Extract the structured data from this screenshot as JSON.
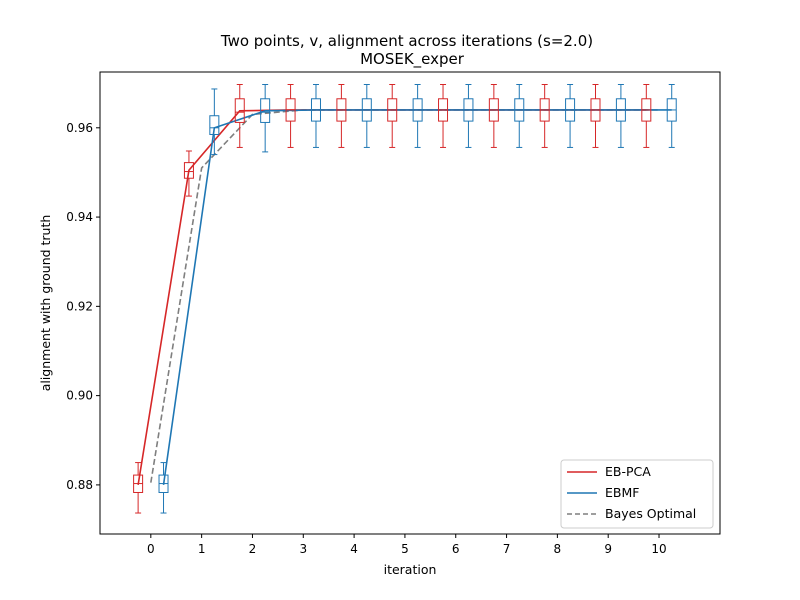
{
  "chart_data": {
    "type": "line",
    "title": "Two points, v, alignment across iterations (s=2.0)",
    "subtitle": "MOSEK_exper",
    "xlabel": "iteration",
    "ylabel": "alignment with ground truth",
    "xlim": [
      -1.0,
      11.2
    ],
    "ylim": [
      0.869,
      0.9725
    ],
    "xticks": [
      0,
      1,
      2,
      3,
      4,
      5,
      6,
      7,
      8,
      9,
      10
    ],
    "yticks": [
      0.88,
      0.9,
      0.92,
      0.94,
      0.96
    ],
    "ytick_labels": [
      "0.88",
      "0.90",
      "0.92",
      "0.94",
      "0.96"
    ],
    "grid": false,
    "legend_position": "lower-right",
    "series": [
      {
        "name": "EB-PCA",
        "color": "#d62728",
        "linestyle": "solid",
        "x": [
          -0.25,
          0.75,
          1.75,
          2.75,
          3.75,
          4.75,
          5.75,
          6.75,
          7.75,
          8.75,
          9.75
        ],
        "y": [
          0.88,
          0.9505,
          0.9638,
          0.964,
          0.964,
          0.964,
          0.964,
          0.964,
          0.964,
          0.964,
          0.964
        ],
        "box": {
          "q1": [
            0.8783,
            0.9487,
            0.9612,
            0.9615,
            0.9615,
            0.9615,
            0.9615,
            0.9615,
            0.9615,
            0.9615,
            0.9615
          ],
          "median": [
            0.8803,
            0.9502,
            0.9635,
            0.964,
            0.964,
            0.964,
            0.964,
            0.964,
            0.964,
            0.964,
            0.964
          ],
          "q3": [
            0.8822,
            0.9522,
            0.9665,
            0.9665,
            0.9665,
            0.9665,
            0.9665,
            0.9665,
            0.9665,
            0.9665,
            0.9665
          ],
          "whisker_low": [
            0.8737,
            0.9447,
            0.9556,
            0.9556,
            0.9556,
            0.9556,
            0.9556,
            0.9556,
            0.9556,
            0.9556,
            0.9556
          ],
          "whisker_high": [
            0.885,
            0.9548,
            0.9697,
            0.9697,
            0.9697,
            0.9697,
            0.9697,
            0.9697,
            0.9697,
            0.9697,
            0.9697
          ]
        }
      },
      {
        "name": "EBMF",
        "color": "#1f77b4",
        "linestyle": "solid",
        "x": [
          0.25,
          1.25,
          2.25,
          3.25,
          4.25,
          5.25,
          6.25,
          7.25,
          8.25,
          9.25,
          10.25
        ],
        "y": [
          0.88,
          0.96,
          0.9638,
          0.964,
          0.964,
          0.964,
          0.964,
          0.964,
          0.964,
          0.964,
          0.964
        ],
        "box": {
          "q1": [
            0.8783,
            0.9585,
            0.9612,
            0.9615,
            0.9615,
            0.9615,
            0.9615,
            0.9615,
            0.9615,
            0.9615,
            0.9615
          ],
          "median": [
            0.8803,
            0.96,
            0.9635,
            0.964,
            0.964,
            0.964,
            0.964,
            0.964,
            0.964,
            0.964,
            0.964
          ],
          "q3": [
            0.8822,
            0.9627,
            0.9665,
            0.9665,
            0.9665,
            0.9665,
            0.9665,
            0.9665,
            0.9665,
            0.9665,
            0.9665
          ],
          "whisker_low": [
            0.8737,
            0.954,
            0.9546,
            0.9556,
            0.9556,
            0.9556,
            0.9556,
            0.9556,
            0.9556,
            0.9556,
            0.9556
          ],
          "whisker_high": [
            0.885,
            0.9687,
            0.9697,
            0.9697,
            0.9697,
            0.9697,
            0.9697,
            0.9697,
            0.9697,
            0.9697,
            0.9697
          ]
        }
      },
      {
        "name": "Bayes Optimal",
        "color": "#7f7f7f",
        "linestyle": "dashed",
        "x": [
          0,
          1,
          2,
          3,
          4,
          5,
          6,
          7,
          8,
          9,
          10
        ],
        "y": [
          0.8805,
          0.951,
          0.963,
          0.964,
          0.964,
          0.964,
          0.964,
          0.964,
          0.964,
          0.964,
          0.964
        ]
      }
    ]
  }
}
